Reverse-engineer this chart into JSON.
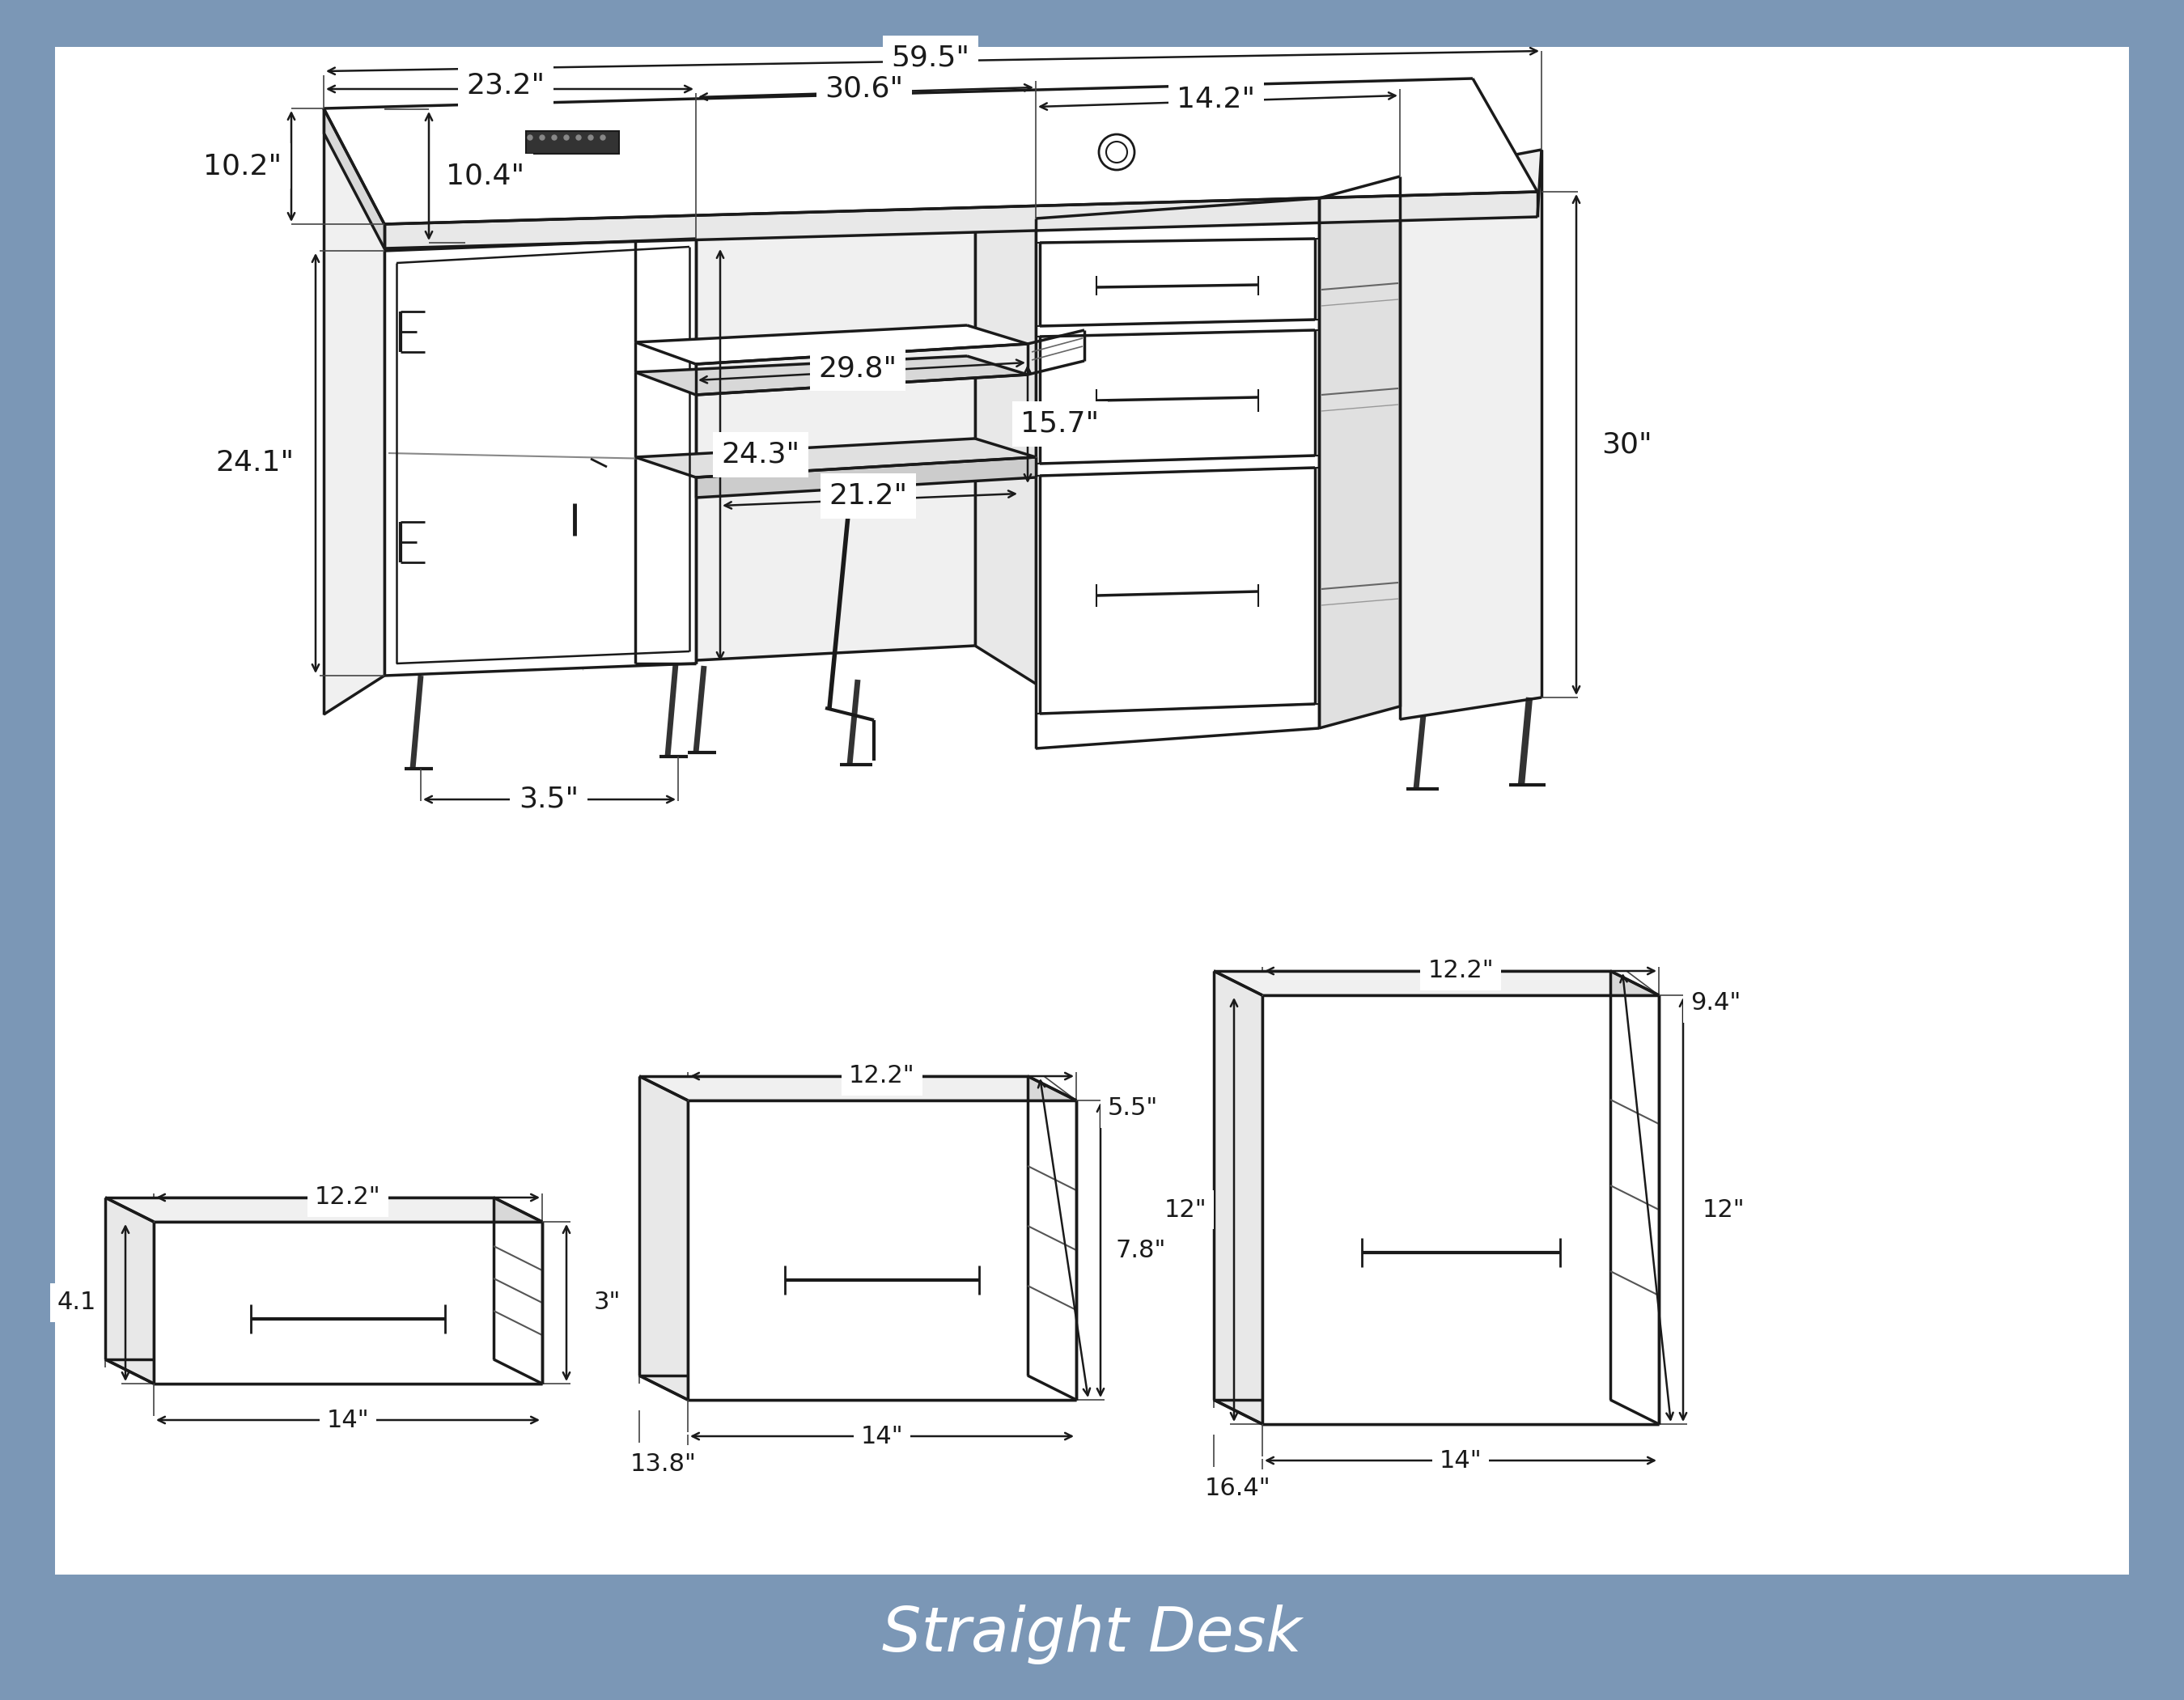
{
  "bg_color": "#7b97b6",
  "panel_color": "#ffffff",
  "line_color": "#1a1a1a",
  "title": "Straight Desk",
  "title_color": "#ffffff",
  "title_fontsize": 55,
  "dims": {
    "total_w": "59.5\"",
    "left_w": "23.2\"",
    "depth_l": "10.2\"",
    "depth_r": "10.4\"",
    "mid_w": "30.6\"",
    "right_w": "14.2\"",
    "shelf_w": "29.8\"",
    "shelf_d": "15.7\"",
    "cab_h": "24.1\"",
    "inner_h": "24.3\"",
    "bot_sp": "21.2\"",
    "foot_h": "3.5\"",
    "total_h": "30\"",
    "d1_w": "12.2\"",
    "d1_top": "3\"",
    "d1_side": "4.1",
    "d1_bot": "14\"",
    "d2_w": "12.2\"",
    "d2_front": "7.8\"",
    "d2_side": "5.5\"",
    "d2_bot1": "14\"",
    "d2_bot2": "13.8\"",
    "d3_w": "12.2\"",
    "d3_front": "12\"",
    "d3_side": "9.4\"",
    "d3_bot1": "14\"",
    "d3_bot2": "16.4\""
  }
}
